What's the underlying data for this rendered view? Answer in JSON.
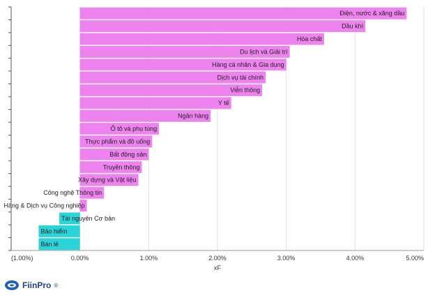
{
  "chart_data": {
    "type": "bar",
    "orientation": "horizontal",
    "categories": [
      "Điện, nước & xăng dầu",
      "Dầu khí",
      "Hóa chất",
      "Du lịch và Giải trí",
      "Hàng cá nhân & Gia dụng",
      "Dịch vụ tài chính",
      "Viễn thông",
      "Y tế",
      "Ngân hàng",
      "Ô tô và phụ tùng",
      "Thực phẩm và đồ uống",
      "Bất động sản",
      "Truyền thông",
      "Xây dựng và Vật liệu",
      "Công nghệ Thông tin",
      "Hàng & Dịch vụ Công nghiệp",
      "Tài nguyên Cơ bản",
      "Bảo hiểm",
      "Bán lẻ"
    ],
    "values": [
      4.75,
      4.15,
      3.55,
      3.05,
      3.0,
      2.7,
      2.65,
      2.2,
      1.9,
      1.15,
      1.05,
      1.0,
      0.9,
      0.85,
      0.35,
      0.1,
      -0.3,
      -0.6,
      -0.6
    ],
    "xlim": [
      -1,
      5
    ],
    "xticks": [
      -1,
      0,
      1,
      2,
      3,
      4,
      5
    ],
    "xtick_labels": [
      "(1.00%)",
      "0.00%",
      "1.00%",
      "2.00%",
      "3.00%",
      "4.00%",
      "5.00%"
    ],
    "xlabel": "xF",
    "ylabel": "",
    "title": "",
    "positive_color": "#ee82ee",
    "negative_color": "#2ad4d9",
    "grid": "vertical"
  },
  "brand": {
    "logo_text": "FiinPro",
    "logo_mark": "®"
  }
}
